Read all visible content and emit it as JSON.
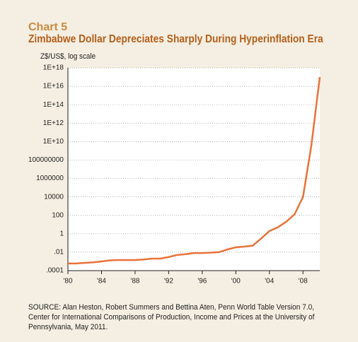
{
  "chart_data": {
    "type": "line",
    "title": "Chart 5",
    "subtitle": "Zimbabwe Dollar Depreciates Sharply During Hyperinflation Era",
    "y_label": "Z$/US$, log scale",
    "source": "SOURCE: Alan Heston, Robert Summers and Bettina Aten, Penn World Table Version 7.0, Center for International Comparisons of Production, Income and Prices at the University of Pennsylvania, May 2011.",
    "x": [
      1980,
      1981,
      1982,
      1983,
      1984,
      1985,
      1986,
      1987,
      1988,
      1989,
      1990,
      1991,
      1992,
      1993,
      1994,
      1995,
      1996,
      1997,
      1998,
      1999,
      2000,
      2001,
      2002,
      2003,
      2004,
      2005,
      2006,
      2007,
      2008,
      2009,
      2010
    ],
    "values": [
      0.0006,
      0.0006,
      0.0007,
      0.0008,
      0.001,
      0.0013,
      0.0014,
      0.0014,
      0.0014,
      0.0016,
      0.002,
      0.002,
      0.003,
      0.005,
      0.006,
      0.008,
      0.008,
      0.009,
      0.01,
      0.02,
      0.034,
      0.04,
      0.05,
      0.3,
      2,
      5,
      20,
      130,
      10000,
      4000000000,
      100000000000000000
    ],
    "color": "#e8733a",
    "xlim": [
      1980,
      2010
    ],
    "xticks": [
      {
        "value": 1980,
        "label": "'80"
      },
      {
        "value": 1984,
        "label": "'84"
      },
      {
        "value": 1988,
        "label": "'88"
      },
      {
        "value": 1992,
        "label": "'92"
      },
      {
        "value": 1996,
        "label": "'96"
      },
      {
        "value": 2000,
        "label": "'00"
      },
      {
        "value": 2004,
        "label": "'04"
      },
      {
        "value": 2008,
        "label": "'08"
      }
    ],
    "ylim": [
      0.0001,
      1000000000000000000
    ],
    "yticks": [
      {
        "value": 0.0001,
        "label": ".0001"
      },
      {
        "value": 0.01,
        "label": ".01"
      },
      1,
      100,
      10000,
      1000000,
      100000000,
      {
        "value": 10000000000,
        "label": "1E+10"
      },
      {
        "value": 1000000000000,
        "label": "1E+12"
      },
      {
        "value": 100000000000000,
        "label": "1E+14"
      },
      {
        "value": 10000000000000000,
        "label": "1E+16"
      },
      {
        "value": 1000000000000000000,
        "label": "1E+18"
      }
    ],
    "log_scale": true,
    "grid": true
  }
}
